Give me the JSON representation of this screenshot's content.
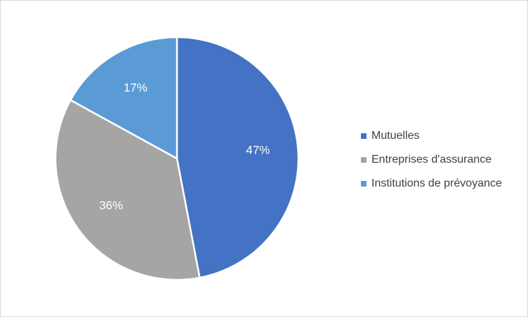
{
  "chart_data": {
    "type": "pie",
    "categories": [
      "Mutuelles",
      "Entreprises d'assurance",
      "Institutions de prévoyance"
    ],
    "values": [
      47,
      36,
      17
    ],
    "data_labels": [
      "47%",
      "36%",
      "17%"
    ],
    "colors": [
      "#4472c4",
      "#a5a5a5",
      "#5b9bd5"
    ],
    "title": "",
    "legend_position": "right"
  }
}
